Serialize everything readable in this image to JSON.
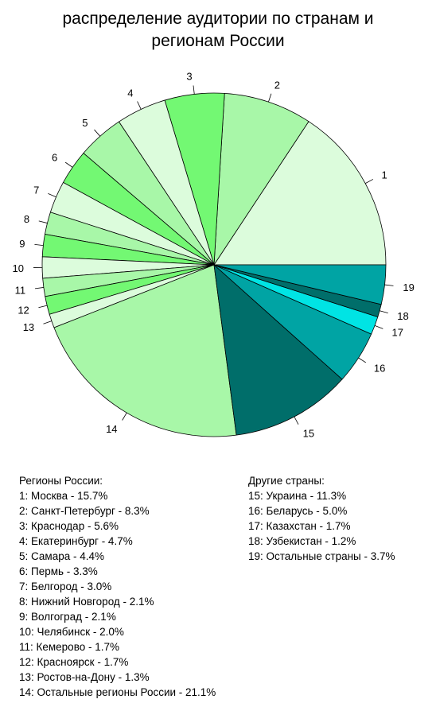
{
  "chart_data": {
    "type": "pie",
    "title_lines": [
      "распределение аудитории по странам и",
      "регионам России"
    ],
    "slices": [
      {
        "label": "1",
        "value": 15.7,
        "color": "#dcfcdc"
      },
      {
        "label": "2",
        "value": 8.3,
        "color": "#a8f7a8"
      },
      {
        "label": "3",
        "value": 5.6,
        "color": "#73f873"
      },
      {
        "label": "4",
        "value": 4.7,
        "color": "#dcfcdc"
      },
      {
        "label": "5",
        "value": 4.4,
        "color": "#a8f7a8"
      },
      {
        "label": "6",
        "value": 3.3,
        "color": "#73f873"
      },
      {
        "label": "7",
        "value": 3.0,
        "color": "#dcfcdc"
      },
      {
        "label": "8",
        "value": 2.1,
        "color": "#a8f7a8"
      },
      {
        "label": "9",
        "value": 2.1,
        "color": "#73f873"
      },
      {
        "label": "10",
        "value": 2.0,
        "color": "#dcfcdc"
      },
      {
        "label": "11",
        "value": 1.7,
        "color": "#a8f7a8"
      },
      {
        "label": "12",
        "value": 1.7,
        "color": "#73f873"
      },
      {
        "label": "13",
        "value": 1.3,
        "color": "#dcfcdc"
      },
      {
        "label": "14",
        "value": 21.1,
        "color": "#a8f7a8"
      },
      {
        "label": "15",
        "value": 11.3,
        "color": "#006e6a"
      },
      {
        "label": "16",
        "value": 5.0,
        "color": "#00a4a4"
      },
      {
        "label": "17",
        "value": 1.7,
        "color": "#00e4e4"
      },
      {
        "label": "18",
        "value": 1.2,
        "color": "#006e6a"
      },
      {
        "label": "19",
        "value": 3.7,
        "color": "#00a4a4"
      }
    ]
  },
  "legend_left": {
    "header": "Регионы России:",
    "items": [
      "1: Москва - 15.7%",
      "2: Санкт-Петербург - 8.3%",
      "3: Краснодар - 5.6%",
      "4: Екатеринбург - 4.7%",
      "5: Самара - 4.4%",
      "6: Пермь - 3.3%",
      "7: Белгород - 3.0%",
      "8: Нижний Новгород - 2.1%",
      "9: Волгоград - 2.1%",
      "10: Челябинск - 2.0%",
      "11: Кемерово - 1.7%",
      "12: Красноярск - 1.7%",
      "13: Ростов-на-Дону - 1.3%",
      "14: Остальные регионы России - 21.1%"
    ]
  },
  "legend_right": {
    "header": "Другие страны:",
    "items": [
      "15: Украина - 11.3%",
      "16: Беларусь - 5.0%",
      "17: Казахстан - 1.7%",
      "18: Узбекистан - 1.2%",
      "19: Остальные страны - 3.7%"
    ]
  }
}
